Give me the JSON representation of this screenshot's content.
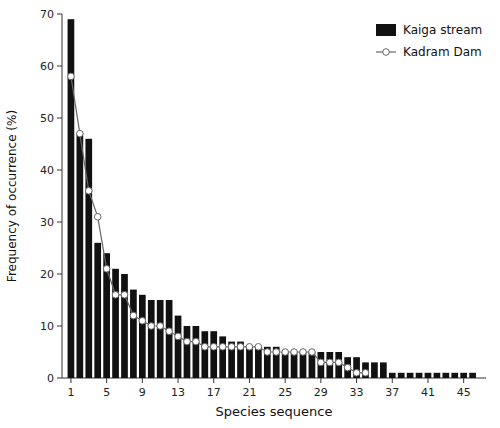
{
  "chart_data": {
    "type": "bar",
    "xlabel": "Species sequence",
    "ylabel": "Frequency of occurrence (%)",
    "xlim": [
      0.0,
      47.5
    ],
    "xticks": [
      1,
      5,
      9,
      13,
      17,
      21,
      25,
      29,
      33,
      37,
      41,
      45
    ],
    "ylim": [
      0,
      70
    ],
    "yticks": [
      0,
      10,
      20,
      30,
      40,
      50,
      60,
      70
    ],
    "grid": false,
    "legend": "top-right",
    "series": [
      {
        "name": "Kaiga stream",
        "type": "bar",
        "color": "#111111",
        "x": [
          1,
          2,
          3,
          4,
          5,
          6,
          7,
          8,
          9,
          10,
          11,
          12,
          13,
          14,
          15,
          16,
          17,
          18,
          19,
          20,
          21,
          22,
          23,
          24,
          25,
          26,
          27,
          28,
          29,
          30,
          31,
          32,
          33,
          34,
          35,
          36,
          37,
          38,
          39,
          40,
          41,
          42,
          43,
          44,
          45,
          46
        ],
        "values": [
          69,
          47,
          46,
          26,
          24,
          21,
          20,
          17,
          16,
          15,
          15,
          15,
          12,
          10,
          10,
          9,
          9,
          8,
          7,
          7,
          6,
          6,
          6,
          6,
          5,
          5,
          5,
          5,
          5,
          5,
          5,
          4,
          4,
          3,
          3,
          3,
          1,
          1,
          1,
          1,
          1,
          1,
          1,
          1,
          1,
          1
        ]
      },
      {
        "name": "Kadram Dam",
        "type": "line",
        "color": "#666666",
        "marker": "circle",
        "line_style": "solid",
        "x": [
          1,
          2,
          3,
          4,
          5,
          6,
          7,
          8,
          9,
          10,
          11,
          12,
          13,
          14,
          15,
          16,
          17,
          18,
          19,
          20,
          21,
          22,
          23,
          24,
          25,
          26,
          27,
          28,
          29,
          30,
          31,
          32,
          33,
          34
        ],
        "values": [
          58,
          47,
          36,
          31,
          21,
          16,
          16,
          12,
          11,
          10,
          10,
          9,
          8,
          7,
          7,
          6,
          6,
          6,
          6,
          6,
          6,
          6,
          5,
          5,
          5,
          5,
          5,
          5,
          3,
          3,
          3,
          2,
          1,
          1
        ]
      }
    ]
  }
}
